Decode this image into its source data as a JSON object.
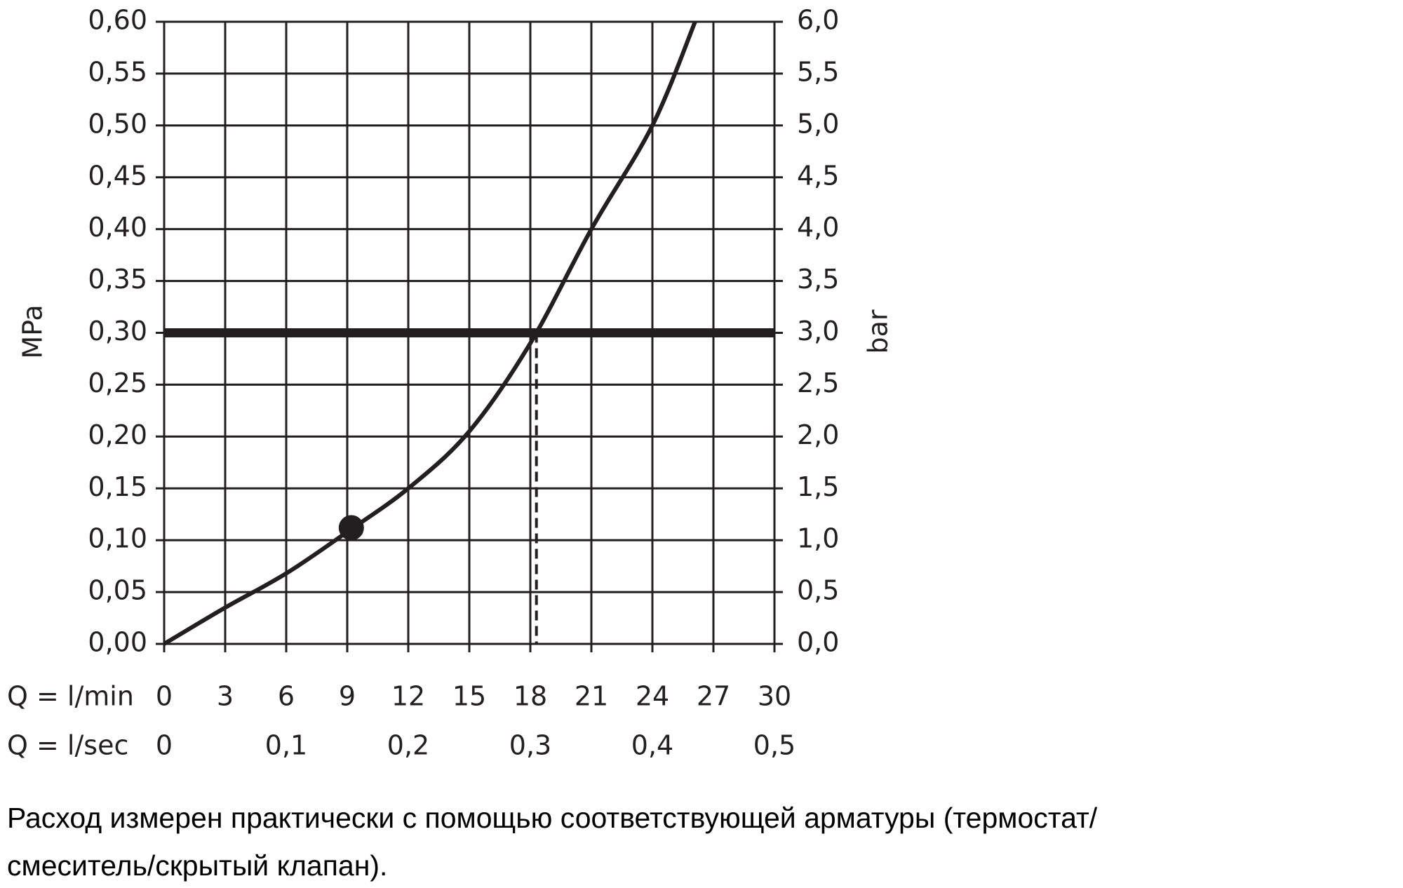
{
  "chart_data": {
    "type": "line",
    "xlabel": "Q = l/min",
    "x2label": "Q = l/sec",
    "ylabel": "MPa",
    "y2label": "bar",
    "x": [
      0,
      3,
      6,
      9,
      12,
      15,
      18,
      21,
      24,
      26.1
    ],
    "series": [
      {
        "color": "#231f20",
        "values": [
          0,
          0.035,
          0.068,
          0.108,
          0.15,
          0.205,
          0.29,
          0.4,
          0.5,
          0.6
        ]
      }
    ],
    "marker": {
      "x": 9.2,
      "y": 0.112
    },
    "hline": 0.3,
    "vline": 18.3,
    "xlim": [
      0,
      30
    ],
    "xticks": [
      0,
      3,
      6,
      9,
      12,
      15,
      18,
      21,
      24,
      27,
      30
    ],
    "x2lim": [
      0,
      0.5
    ],
    "x2ticks": [
      0,
      {
        "value": 0.1,
        "label": "0,1"
      },
      {
        "value": 0.2,
        "label": "0,2"
      },
      {
        "value": 0.3,
        "label": "0,3"
      },
      {
        "value": 0.4,
        "label": "0,4"
      },
      {
        "value": 0.5,
        "label": "0,5"
      }
    ],
    "ylim": [
      0,
      0.6
    ],
    "yticks": [
      {
        "value": 0,
        "label": "0,00"
      },
      {
        "value": 0.05,
        "label": "0,05"
      },
      {
        "value": 0.1,
        "label": "0,10"
      },
      {
        "value": 0.15,
        "label": "0,15"
      },
      {
        "value": 0.2,
        "label": "0,20"
      },
      {
        "value": 0.25,
        "label": "0,25"
      },
      {
        "value": 0.3,
        "label": "0,30"
      },
      {
        "value": 0.35,
        "label": "0,35"
      },
      {
        "value": 0.4,
        "label": "0,40"
      },
      {
        "value": 0.45,
        "label": "0,45"
      },
      {
        "value": 0.5,
        "label": "0,50"
      },
      {
        "value": 0.55,
        "label": "0,55"
      },
      {
        "value": 0.6,
        "label": "0,60"
      }
    ],
    "y2lim": [
      0,
      6
    ],
    "y2ticks": [
      {
        "value": 0,
        "label": "0,0"
      },
      {
        "value": 0.5,
        "label": "0,5"
      },
      {
        "value": 1,
        "label": "1,0"
      },
      {
        "value": 1.5,
        "label": "1,5"
      },
      {
        "value": 2,
        "label": "2,0"
      },
      {
        "value": 2.5,
        "label": "2,5"
      },
      {
        "value": 3,
        "label": "3,0"
      },
      {
        "value": 3.5,
        "label": "3,5"
      },
      {
        "value": 4,
        "label": "4,0"
      },
      {
        "value": 4.5,
        "label": "4,5"
      },
      {
        "value": 5,
        "label": "5,0"
      },
      {
        "value": 5.5,
        "label": "5,5"
      },
      {
        "value": 6,
        "label": "6,0"
      }
    ],
    "grid": true,
    "caption": [
      "Расход измерен практически с помощью соответствующей арматуры (термостат/",
      "смеситель/скрытый клапан)."
    ]
  }
}
